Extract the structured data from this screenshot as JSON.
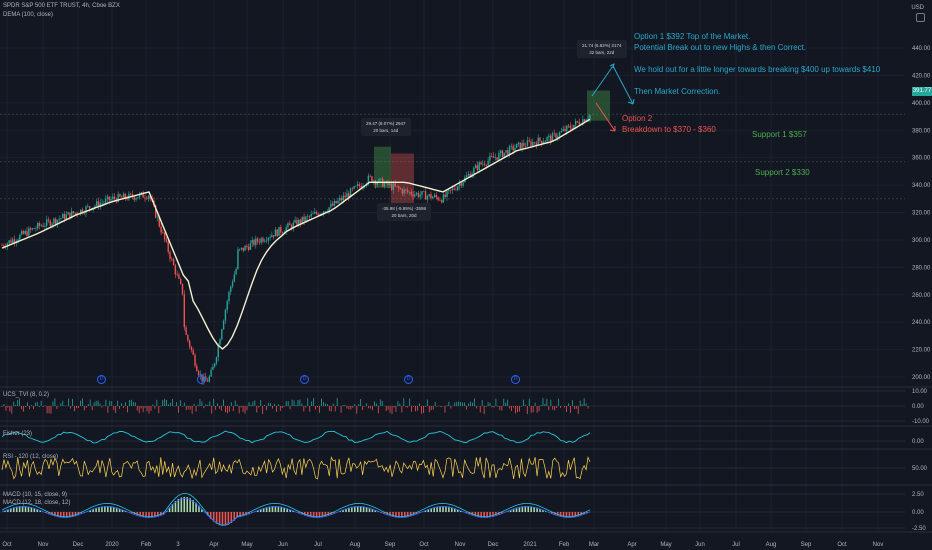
{
  "header": {
    "symbol_line": "SPDR S&P 500 ETF TRUST, 4h, Cboe BZX",
    "indicator_line": "DEMA (100, close)"
  },
  "price_axis": {
    "currency": "USD",
    "ticks": [
      "440.00",
      "420.00",
      "400.00",
      "380.00",
      "360.00",
      "340.00",
      "320.00",
      "300.00",
      "280.00",
      "260.00",
      "240.00",
      "220.00",
      "200.00"
    ],
    "last_price": "391.77"
  },
  "time_axis": {
    "ticks": [
      "Oct",
      "Nov",
      "Dec",
      "2020",
      "Feb",
      "3",
      "Apr",
      "May",
      "Jun",
      "Jul",
      "Aug",
      "Sep",
      "Oct",
      "Nov",
      "Dec",
      "2021",
      "Feb",
      "Mar",
      "Apr",
      "May",
      "Jun",
      "Jul",
      "Aug",
      "Sep",
      "Oct",
      "Nov"
    ]
  },
  "annotations": {
    "option1": [
      "Option 1 $392 Top of the Market.",
      "Potential Break out to new Highs & then Correct.",
      "",
      "We hold out for a little longer towards breaking $400 up towards $410",
      "",
      "Then Market Correction."
    ],
    "option2": [
      "Option 2",
      "Breakdown to $370 - $360"
    ],
    "support1": "Support 1 $357",
    "support2": "Support 2 $330",
    "range_up": [
      "29.47 (8.07%) 2947",
      "20 bars, 14d"
    ],
    "range_down": [
      "-35.98 (-9.99%) -3598",
      "20 bars, 20d"
    ],
    "range_top": [
      "21.74 (6.82%) 2174",
      "32 bars, 22d"
    ]
  },
  "panes": {
    "ucs": {
      "label": "UCS_TVI (8, 0.2)",
      "ticks": [
        "10.00",
        "0.00",
        "-10.00"
      ]
    },
    "fisher": {
      "label": "Fisher (23)",
      "ticks": [
        "0.00"
      ]
    },
    "rsi": {
      "label": "RSI - 120 (12, close)",
      "ticks": [
        "50.00"
      ]
    },
    "macd": {
      "label1": "MACD (10, 15, close, 9)",
      "label2": "MACD (12, 18, close, 12)",
      "ticks": [
        "2.50",
        "0.00",
        "-2.50"
      ]
    }
  },
  "event_marker_glyph": "D",
  "colors": {
    "background": "#131722",
    "up": "#26a69a",
    "down": "#ef5350",
    "dema": "#f4f1d0",
    "option1": "#2aa7c9",
    "option2": "#ef5350",
    "support": "#4caf50",
    "fisher": "#26c6da",
    "rsi": "#ffd54f"
  },
  "chart_data": {
    "type": "candlestick",
    "title": "SPDR S&P 500 ETF TRUST, 4h, Cboe BZX",
    "x": [
      "2019-10",
      "2019-11",
      "2019-12",
      "2020-01",
      "2020-02",
      "2020-03",
      "2020-04",
      "2020-05",
      "2020-06",
      "2020-07",
      "2020-08",
      "2020-09",
      "2020-10",
      "2020-11",
      "2020-12",
      "2021-01",
      "2021-02"
    ],
    "close": [
      296,
      310,
      320,
      330,
      333,
      255,
      285,
      300,
      312,
      325,
      345,
      335,
      330,
      355,
      368,
      375,
      391
    ],
    "series": [
      {
        "name": "DEMA (100, close)",
        "values": [
          294,
          305,
          318,
          328,
          335,
          270,
          270,
          295,
          310,
          322,
          342,
          342,
          335,
          350,
          365,
          372,
          388
        ]
      }
    ],
    "ylim": [
      200,
      440
    ],
    "horizontal_levels": [
      391.77,
      357,
      330
    ]
  }
}
